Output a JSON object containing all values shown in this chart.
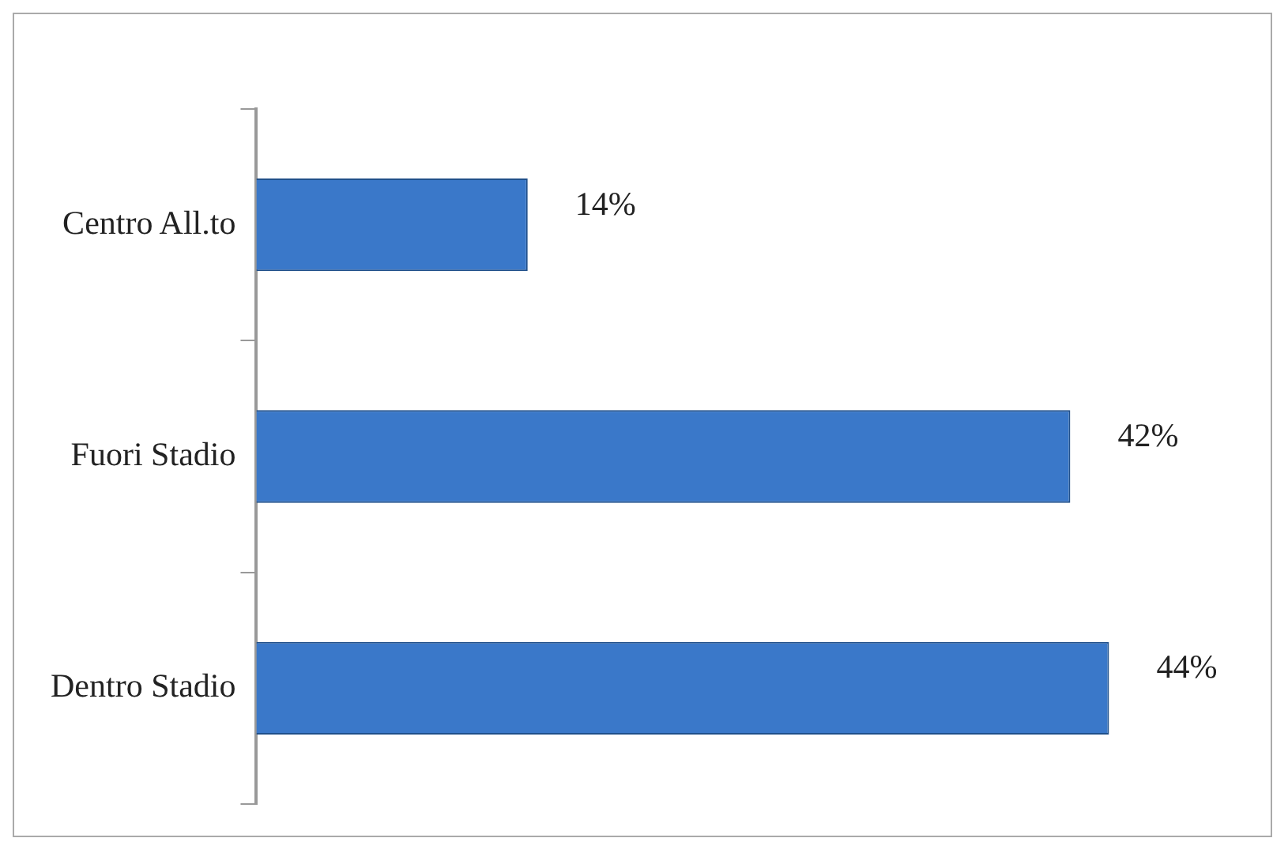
{
  "chart_data": {
    "type": "bar",
    "orientation": "horizontal",
    "categories": [
      "Centro All.to",
      "Fuori Stadio",
      "Dentro Stadio"
    ],
    "values": [
      14,
      42,
      44
    ],
    "color": "#3a78c9",
    "value_labels": [
      "14%",
      "42%",
      "44%"
    ],
    "tick_labels": "y",
    "legend": false
  }
}
